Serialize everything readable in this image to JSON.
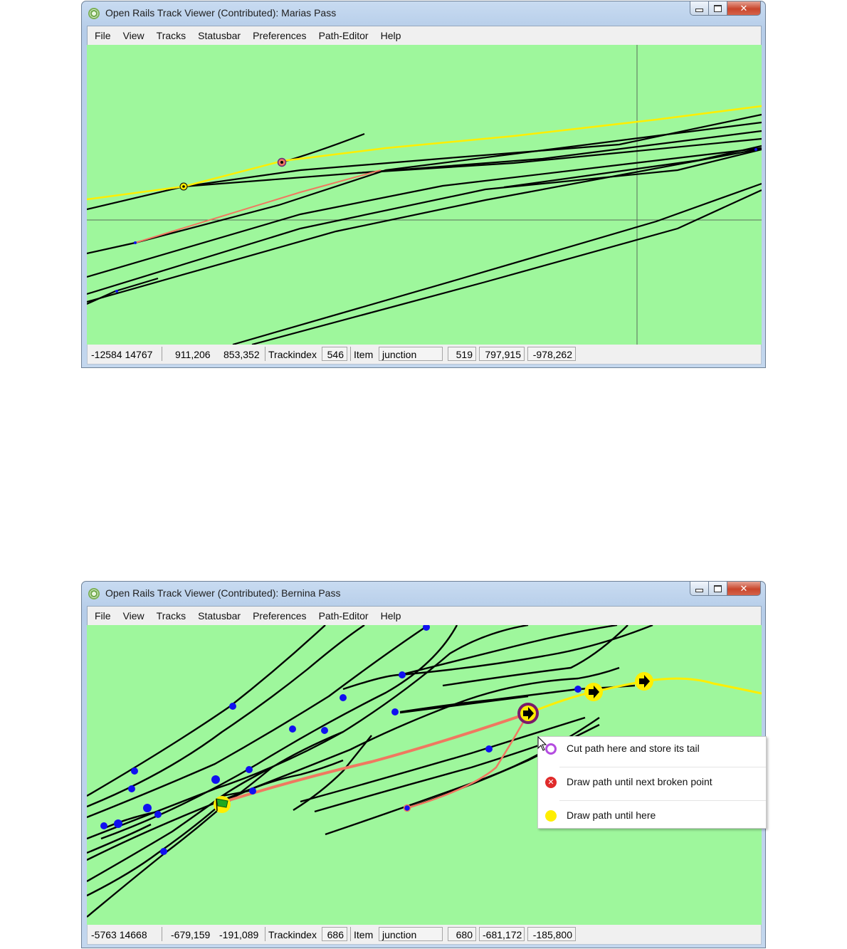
{
  "windows": [
    {
      "title": "Open Rails Track Viewer (Contributed): Marias Pass",
      "menu": [
        "File",
        "View",
        "Tracks",
        "Statusbar",
        "Preferences",
        "Path-Editor",
        "Help"
      ],
      "status": {
        "coords": "-12584  14767",
        "val1": "911,206",
        "val2": "853,352",
        "trackindex_label": "Trackindex",
        "trackindex": "546",
        "item_label": "Item",
        "item": "junction",
        "id": "519",
        "x": "797,915",
        "z": "-978,262"
      }
    },
    {
      "title": "Open Rails Track Viewer (Contributed): Bernina Pass",
      "menu": [
        "File",
        "View",
        "Tracks",
        "Statusbar",
        "Preferences",
        "Path-Editor",
        "Help"
      ],
      "status": {
        "coords": "-5763  14668",
        "val1": "-679,159",
        "val2": "-191,089",
        "trackindex_label": "Trackindex",
        "trackindex": "686",
        "item_label": "Item",
        "item": "junction",
        "id": "680",
        "x": "-681,172",
        "z": "-185,800"
      }
    }
  ],
  "context_menu": {
    "items": [
      {
        "label": "Cut path here and store its tail",
        "icon": "purple-ring-icon"
      },
      {
        "label": "Draw path until next broken point",
        "icon": "red-broken-point-icon"
      },
      {
        "label": "Draw path until here",
        "icon": "yellow-dot-icon"
      }
    ]
  },
  "colors": {
    "canvas": "#9ef79c",
    "track": "#000000",
    "path": "#ffee00",
    "broken_path": "#f07860",
    "junction": "#1010f0",
    "close_button": "#c9462c"
  }
}
